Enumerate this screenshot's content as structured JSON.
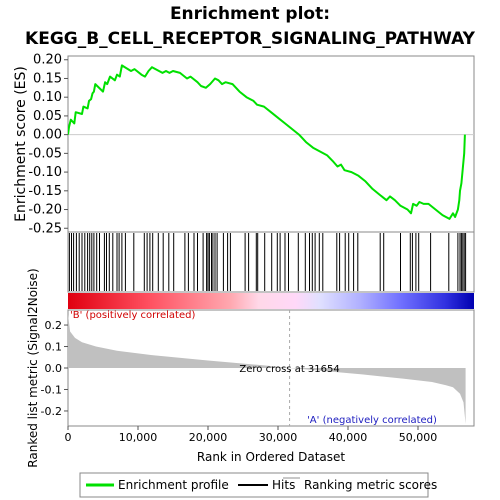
{
  "chart_data": {
    "type": "line",
    "title_line1": "Enrichment plot:",
    "title_line2": "KEGG_B_CELL_RECEPTOR_SIGNALING_PATHWAY",
    "xlabel": "Rank in Ordered Dataset",
    "x_range": [
      0,
      58000
    ],
    "x_ticks": [
      0,
      10000,
      20000,
      30000,
      40000,
      50000
    ],
    "x_tick_labels": [
      "0",
      "10,000",
      "20,000",
      "30,000",
      "40,000",
      "50,000"
    ],
    "es_panel": {
      "ylabel": "Enrichment score (ES)",
      "ylim": [
        -0.26,
        0.21
      ],
      "y_ticks": [
        -0.25,
        -0.2,
        -0.15,
        -0.1,
        -0.05,
        0.0,
        0.05,
        0.1,
        0.15,
        0.2
      ],
      "y_tick_labels": [
        "-0.25",
        "-0.20",
        "-0.15",
        "-0.10",
        "-0.05",
        "0.00",
        "0.05",
        "0.10",
        "0.15",
        "0.20"
      ],
      "color": "#00e000",
      "profile": [
        [
          0,
          0.0
        ],
        [
          150,
          0.02
        ],
        [
          400,
          0.04
        ],
        [
          900,
          0.03
        ],
        [
          1100,
          0.06
        ],
        [
          2000,
          0.055
        ],
        [
          2200,
          0.075
        ],
        [
          2800,
          0.07
        ],
        [
          3000,
          0.09
        ],
        [
          3300,
          0.095
        ],
        [
          3500,
          0.11
        ],
        [
          3700,
          0.115
        ],
        [
          3900,
          0.135
        ],
        [
          5000,
          0.115
        ],
        [
          5300,
          0.14
        ],
        [
          5600,
          0.135
        ],
        [
          6000,
          0.155
        ],
        [
          6700,
          0.145
        ],
        [
          7000,
          0.16
        ],
        [
          7400,
          0.155
        ],
        [
          7700,
          0.185
        ],
        [
          9000,
          0.17
        ],
        [
          9500,
          0.175
        ],
        [
          10500,
          0.16
        ],
        [
          11000,
          0.155
        ],
        [
          11500,
          0.17
        ],
        [
          12000,
          0.18
        ],
        [
          13000,
          0.17
        ],
        [
          13500,
          0.165
        ],
        [
          14000,
          0.17
        ],
        [
          14500,
          0.165
        ],
        [
          15000,
          0.17
        ],
        [
          16000,
          0.165
        ],
        [
          17000,
          0.15
        ],
        [
          17500,
          0.155
        ],
        [
          18500,
          0.14
        ],
        [
          19000,
          0.13
        ],
        [
          19700,
          0.125
        ],
        [
          20300,
          0.135
        ],
        [
          21000,
          0.15
        ],
        [
          21500,
          0.145
        ],
        [
          22000,
          0.135
        ],
        [
          22500,
          0.14
        ],
        [
          23500,
          0.135
        ],
        [
          24500,
          0.115
        ],
        [
          25500,
          0.1
        ],
        [
          26500,
          0.09
        ],
        [
          27000,
          0.08
        ],
        [
          28000,
          0.075
        ],
        [
          29000,
          0.06
        ],
        [
          30000,
          0.045
        ],
        [
          31000,
          0.03
        ],
        [
          32000,
          0.015
        ],
        [
          33000,
          0.0
        ],
        [
          34000,
          -0.02
        ],
        [
          35000,
          -0.035
        ],
        [
          36000,
          -0.045
        ],
        [
          37000,
          -0.055
        ],
        [
          37800,
          -0.07
        ],
        [
          38500,
          -0.085
        ],
        [
          39000,
          -0.08
        ],
        [
          39500,
          -0.095
        ],
        [
          40500,
          -0.1
        ],
        [
          41500,
          -0.11
        ],
        [
          42500,
          -0.125
        ],
        [
          43500,
          -0.145
        ],
        [
          44500,
          -0.16
        ],
        [
          45500,
          -0.175
        ],
        [
          46000,
          -0.165
        ],
        [
          46700,
          -0.175
        ],
        [
          47500,
          -0.19
        ],
        [
          48500,
          -0.2
        ],
        [
          49000,
          -0.21
        ],
        [
          49300,
          -0.185
        ],
        [
          49800,
          -0.19
        ],
        [
          50200,
          -0.18
        ],
        [
          50800,
          -0.185
        ],
        [
          51500,
          -0.185
        ],
        [
          52500,
          -0.2
        ],
        [
          53500,
          -0.215
        ],
        [
          54500,
          -0.225
        ],
        [
          55000,
          -0.21
        ],
        [
          55300,
          -0.22
        ],
        [
          55700,
          -0.2
        ],
        [
          55900,
          -0.175
        ],
        [
          56000,
          -0.15
        ],
        [
          56200,
          -0.13
        ],
        [
          56400,
          -0.09
        ],
        [
          56600,
          -0.05
        ],
        [
          56700,
          0.0
        ]
      ]
    },
    "hits_panel": {
      "hits": [
        200,
        500,
        800,
        1200,
        1600,
        2000,
        2400,
        2800,
        3100,
        3400,
        3700,
        4100,
        4500,
        5200,
        5500,
        5900,
        6400,
        7000,
        7300,
        7700,
        8200,
        9400,
        10900,
        11300,
        11700,
        12100,
        12900,
        13600,
        14400,
        15100,
        16700,
        17200,
        18000,
        18500,
        19300,
        19800,
        20000,
        20200,
        20500,
        20700,
        21000,
        21300,
        22200,
        22800,
        23200,
        25300,
        25800,
        26900,
        27100,
        28100,
        29100,
        29900,
        30300,
        31000,
        31500,
        32900,
        33900,
        34500,
        34900,
        35300,
        35900,
        36400,
        38400,
        38800,
        39600,
        40100,
        40800,
        41400,
        44600,
        45100,
        47500,
        48900,
        49200,
        49700,
        50100,
        51800,
        54400,
        55700,
        56000,
        56200,
        56400,
        56600,
        56800
      ],
      "heatmap_stops": [
        [
          0.0,
          "#e00010"
        ],
        [
          0.2,
          "#ff5060"
        ],
        [
          0.4,
          "#ffa8b0"
        ],
        [
          0.47,
          "#ffd8e8"
        ],
        [
          0.56,
          "#ffd8f8"
        ],
        [
          0.62,
          "#e0e0ff"
        ],
        [
          0.72,
          "#b0b0ff"
        ],
        [
          0.82,
          "#7070ff"
        ],
        [
          0.93,
          "#3030e0"
        ],
        [
          1.0,
          "#0000b0"
        ]
      ],
      "pos_label": "'B' (positively correlated)",
      "neg_label": "'A' (negatively correlated)"
    },
    "metric_panel": {
      "ylabel": "Ranked list metric (Signal2Noise)",
      "ylim": [
        -0.27,
        0.27
      ],
      "y_ticks": [
        -0.2,
        -0.1,
        0.0,
        0.1,
        0.2
      ],
      "y_tick_labels": [
        "-0.2",
        "-0.1",
        "0.0",
        "0.1",
        "0.2"
      ],
      "zero_cross_label": "Zero cross at 31654",
      "zero_cross": 31654,
      "metric": [
        [
          0,
          0.25
        ],
        [
          300,
          0.17
        ],
        [
          1000,
          0.14
        ],
        [
          2000,
          0.12
        ],
        [
          4000,
          0.1
        ],
        [
          7000,
          0.08
        ],
        [
          12000,
          0.06
        ],
        [
          20000,
          0.035
        ],
        [
          28000,
          0.012
        ],
        [
          31654,
          0.0
        ],
        [
          36000,
          -0.012
        ],
        [
          42000,
          -0.03
        ],
        [
          48000,
          -0.05
        ],
        [
          52000,
          -0.065
        ],
        [
          54000,
          -0.08
        ],
        [
          55000,
          -0.09
        ],
        [
          56000,
          -0.12
        ],
        [
          56500,
          -0.16
        ],
        [
          56800,
          -0.26
        ]
      ]
    },
    "legend": {
      "items": [
        "Enrichment profile",
        "Hits",
        "Ranking metric scores"
      ],
      "colors": [
        "#00e000",
        "#000000",
        "#c8c8c8"
      ],
      "position": "bottom"
    }
  }
}
